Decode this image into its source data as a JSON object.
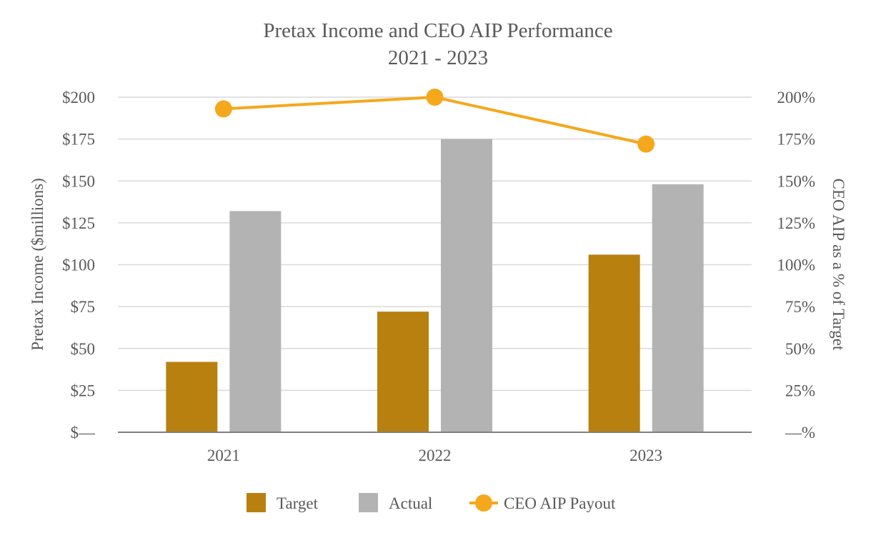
{
  "chart_data": {
    "type": "bar",
    "title": "Pretax Income and CEO AIP Performance",
    "subtitle": "2021 - 2023",
    "categories": [
      "2021",
      "2022",
      "2023"
    ],
    "series": [
      {
        "name": "Target",
        "type": "bar",
        "axis": "left",
        "color": "#b8800f",
        "values": [
          42,
          72,
          106
        ]
      },
      {
        "name": "Actual",
        "type": "bar",
        "axis": "left",
        "color": "#b3b3b3",
        "values": [
          132,
          175,
          148
        ]
      },
      {
        "name": "CEO AIP Payout",
        "type": "line",
        "axis": "right",
        "color": "#f5a81c",
        "values": [
          193,
          200,
          172
        ]
      }
    ],
    "ylabel": "Pretax Income ($millions)",
    "y2label": "CEO AIP as a % of Target",
    "ylim": [
      0,
      200
    ],
    "y2lim": [
      0,
      200
    ],
    "yticks": [
      "$—",
      "$25",
      "$50",
      "$75",
      "$100",
      "$125",
      "$150",
      "$175",
      "$200"
    ],
    "y2ticks": [
      "—%",
      "25%",
      "50%",
      "75%",
      "100%",
      "125%",
      "150%",
      "175%",
      "200%"
    ],
    "legend": [
      "Target",
      "Actual",
      "CEO AIP Payout"
    ],
    "legend_position": "bottom",
    "grid": true
  }
}
